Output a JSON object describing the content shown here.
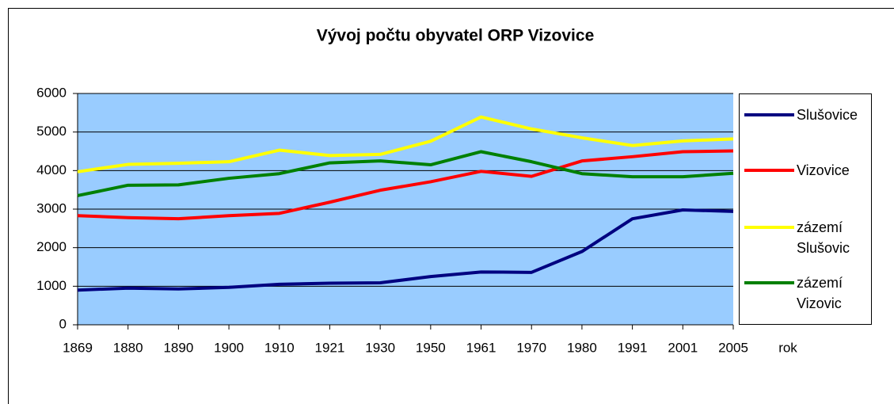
{
  "chart_data": {
    "type": "line",
    "title": "Vývoj počtu obyvatel ORP Vizovice",
    "x_label": "rok",
    "categories": [
      "1869",
      "1880",
      "1890",
      "1900",
      "1910",
      "1921",
      "1930",
      "1950",
      "1961",
      "1970",
      "1980",
      "1991",
      "2001",
      "2005"
    ],
    "series": [
      {
        "name": "Slušovice",
        "color": "#000080",
        "values": [
          900,
          950,
          930,
          970,
          1050,
          1080,
          1090,
          1250,
          1370,
          1360,
          1900,
          2750,
          2980,
          2940
        ]
      },
      {
        "name": "Vizovice",
        "color": "#ff0000",
        "values": [
          2830,
          2780,
          2750,
          2830,
          2890,
          3180,
          3490,
          3710,
          3980,
          3850,
          4250,
          4360,
          4490,
          4510
        ]
      },
      {
        "name": "zázemí Slušovic",
        "color": "#ffff00",
        "values": [
          3970,
          4160,
          4190,
          4230,
          4530,
          4390,
          4420,
          4760,
          5390,
          5080,
          4850,
          4650,
          4770,
          4820
        ]
      },
      {
        "name": "zázemí Vizovic",
        "color": "#008000",
        "values": [
          3350,
          3620,
          3630,
          3800,
          3920,
          4200,
          4250,
          4150,
          4490,
          4230,
          3920,
          3840,
          3840,
          3930
        ]
      }
    ],
    "ylim": [
      0,
      6000
    ],
    "yticks": [
      0,
      1000,
      2000,
      3000,
      4000,
      5000,
      6000
    ],
    "grid": true,
    "legend": "right"
  }
}
